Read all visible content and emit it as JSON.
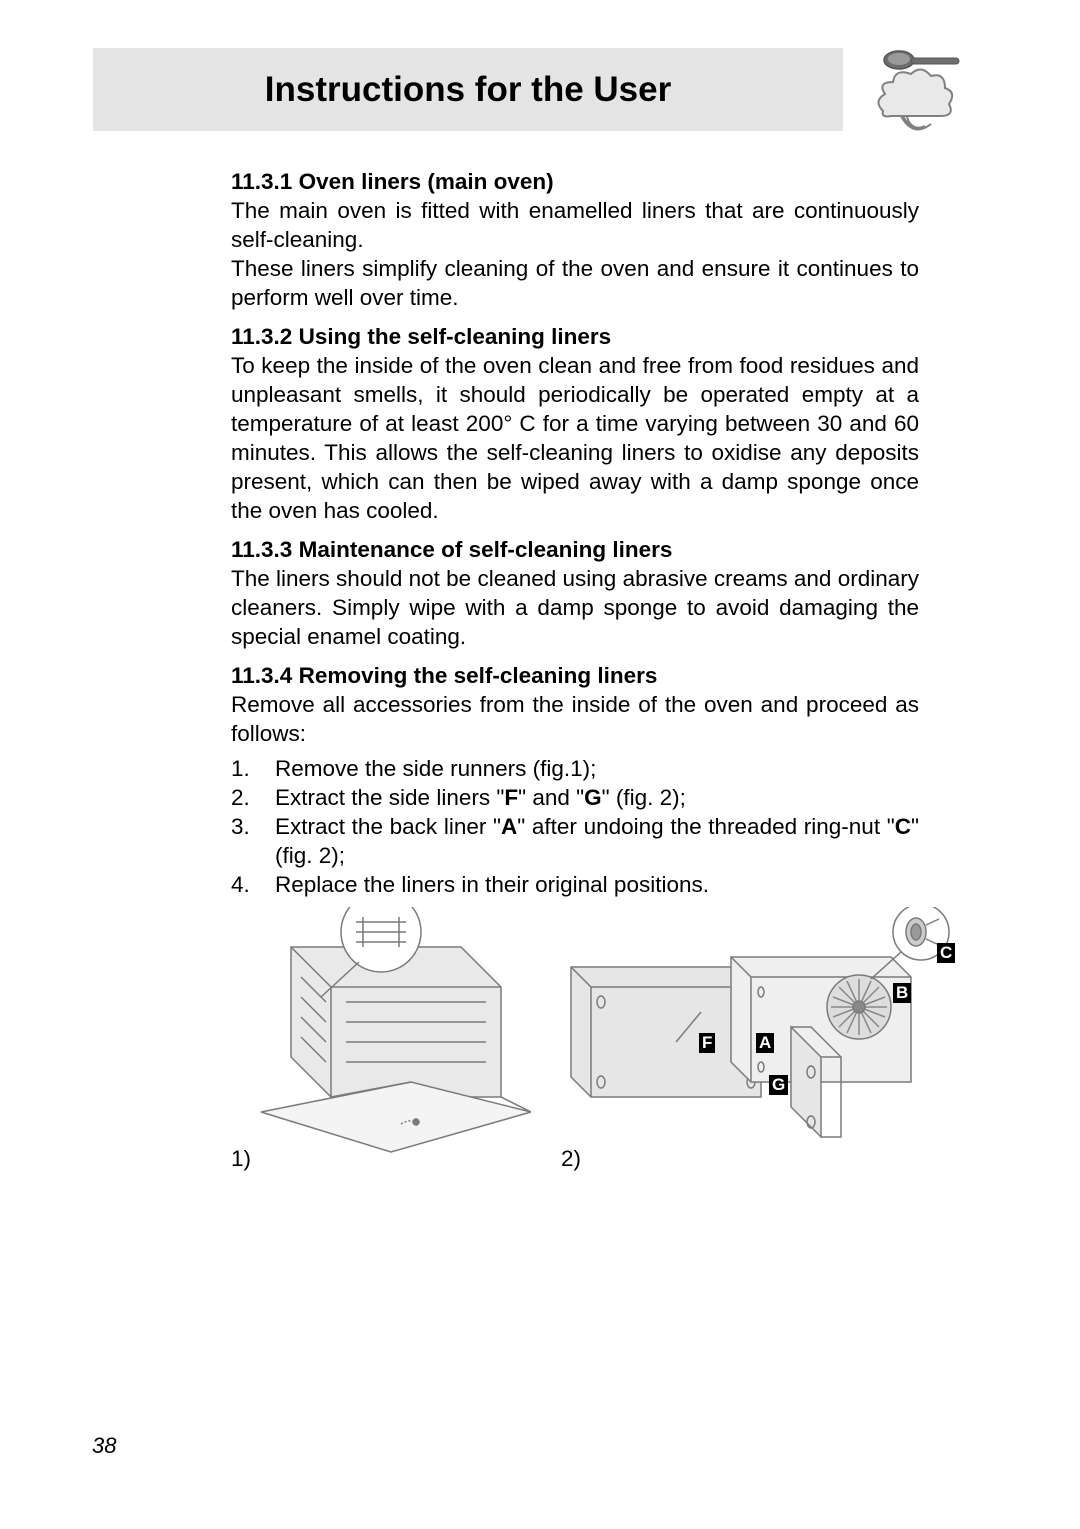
{
  "header": {
    "title": "Instructions for the User",
    "bar_bg": "#e4e4e4",
    "title_fontsize": 35,
    "title_color": "#000000"
  },
  "page_number": "38",
  "typography": {
    "body_fontsize": 22.5,
    "body_color": "#000000",
    "line_height": 1.29
  },
  "sections": [
    {
      "number": "11.3.1",
      "title": "Oven liners (main oven)",
      "paragraphs": [
        "The main oven is fitted with enamelled liners that are continuously self-cleaning.",
        "These liners simplify cleaning of the oven and ensure it continues to perform well over time."
      ]
    },
    {
      "number": "11.3.2",
      "title": "Using the self-cleaning liners",
      "paragraphs": [
        "To keep the inside of the oven clean and free from food residues and unpleasant smells, it should periodically be operated empty at a temperature of at least 200° C for a time varying between 30 and 60 minutes. This allows the self-cleaning liners to oxidise any deposits present, which can then be wiped away with a damp sponge once the oven has cooled."
      ]
    },
    {
      "number": "11.3.3",
      "title": "Maintenance of self-cleaning liners",
      "paragraphs": [
        "The liners should not be cleaned using abrasive creams and ordinary cleaners. Simply wipe with a damp sponge to avoid damaging the special enamel coating."
      ]
    },
    {
      "number": "11.3.4",
      "title": "Removing the self-cleaning liners",
      "paragraphs": [
        "Remove all accessories from the inside of the oven and proceed as follows:"
      ],
      "list": [
        "Remove the side runners (fig.1);",
        "Extract the side liners \"<b>F</b>\" and \"<b>G</b>\" (fig. 2);",
        "Extract the back liner \"<b>A</b>\" after undoing the threaded ring-nut \"<b>C</b>\" (fig. 2);",
        "Replace the liners in their original positions."
      ]
    }
  ],
  "figures": {
    "caption1": "1)",
    "caption2": "2)",
    "labels": {
      "A": "A",
      "B": "B",
      "C": "C",
      "F": "F",
      "G": "G"
    },
    "label_bg": "#000000",
    "label_fg": "#ffffff",
    "diagram_stroke": "#7a7a7a",
    "diagram_fill_light": "#d8d8d8",
    "diagram_fill_mid": "#bfbfbf"
  }
}
